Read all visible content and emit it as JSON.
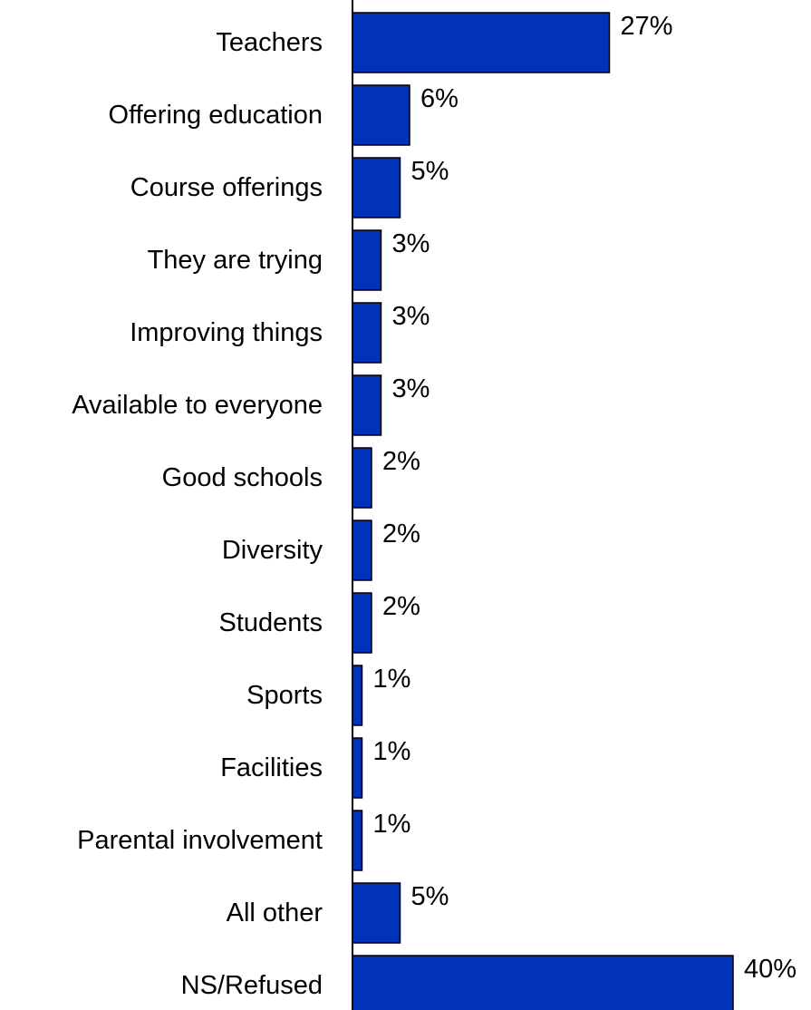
{
  "chart_data": {
    "type": "bar",
    "orientation": "horizontal",
    "categories": [
      "Teachers",
      "Offering education",
      "Course offerings",
      "They are trying",
      "Improving things",
      "Available to everyone",
      "Good schools",
      "Diversity",
      "Students",
      "Sports",
      "Facilities",
      "Parental involvement",
      "All other",
      "NS/Refused"
    ],
    "values": [
      27,
      6,
      5,
      3,
      3,
      3,
      2,
      2,
      2,
      1,
      1,
      1,
      5,
      40
    ],
    "value_labels": [
      "27%",
      "6%",
      "5%",
      "3%",
      "3%",
      "3%",
      "2%",
      "2%",
      "2%",
      "1%",
      "1%",
      "1%",
      "5%",
      "40%"
    ],
    "xlim": [
      0,
      40
    ],
    "grid": false,
    "legend": "none",
    "bar_color": "#0033b5",
    "bar_edge_color": "#000000",
    "title": "",
    "xlabel": "",
    "ylabel": ""
  }
}
